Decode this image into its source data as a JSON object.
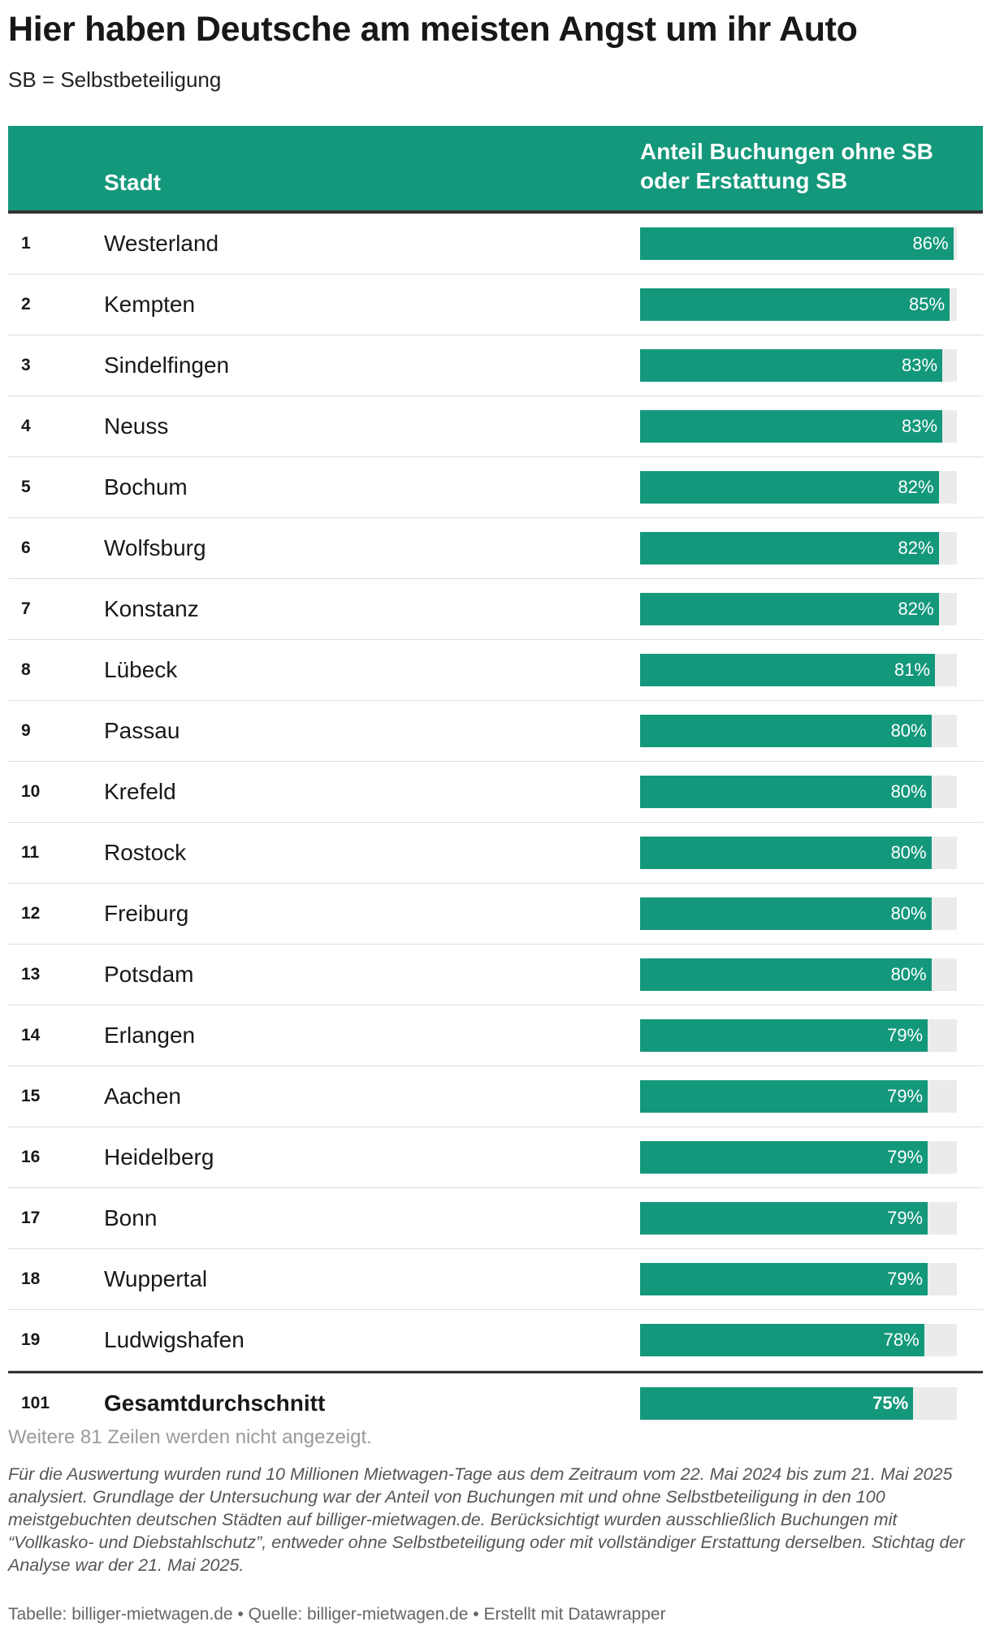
{
  "title": "Hier haben Deutsche am meisten Angst um ihr Auto",
  "subtitle": "SB = Selbstbeteiligung",
  "columns": {
    "city": "Stadt",
    "share": "Anteil Buchungen ohne SB oder Erstattung SB"
  },
  "colors": {
    "accent": "#14987b",
    "bar_background": "#ebebeb",
    "rule": "#333333"
  },
  "chart_data": {
    "type": "table",
    "title": "Hier haben Deutsche am meisten Angst um ihr Auto",
    "subtitle": "SB = Selbstbeteiligung",
    "columns": [
      "",
      "Stadt",
      "Anteil Buchungen ohne SB oder Erstattung SB"
    ],
    "value_max": 87,
    "rows": [
      {
        "rank": "1",
        "city": "Westerland",
        "value": 86,
        "label": "86%"
      },
      {
        "rank": "2",
        "city": "Kempten",
        "value": 85,
        "label": "85%"
      },
      {
        "rank": "3",
        "city": "Sindelfingen",
        "value": 83,
        "label": "83%"
      },
      {
        "rank": "4",
        "city": "Neuss",
        "value": 83,
        "label": "83%"
      },
      {
        "rank": "5",
        "city": "Bochum",
        "value": 82,
        "label": "82%"
      },
      {
        "rank": "6",
        "city": "Wolfsburg",
        "value": 82,
        "label": "82%"
      },
      {
        "rank": "7",
        "city": "Konstanz",
        "value": 82,
        "label": "82%"
      },
      {
        "rank": "8",
        "city": "Lübeck",
        "value": 81,
        "label": "81%"
      },
      {
        "rank": "9",
        "city": "Passau",
        "value": 80,
        "label": "80%"
      },
      {
        "rank": "10",
        "city": "Krefeld",
        "value": 80,
        "label": "80%"
      },
      {
        "rank": "11",
        "city": "Rostock",
        "value": 80,
        "label": "80%"
      },
      {
        "rank": "12",
        "city": "Freiburg",
        "value": 80,
        "label": "80%"
      },
      {
        "rank": "13",
        "city": "Potsdam",
        "value": 80,
        "label": "80%"
      },
      {
        "rank": "14",
        "city": "Erlangen",
        "value": 79,
        "label": "79%"
      },
      {
        "rank": "15",
        "city": "Aachen",
        "value": 79,
        "label": "79%"
      },
      {
        "rank": "16",
        "city": "Heidelberg",
        "value": 79,
        "label": "79%"
      },
      {
        "rank": "17",
        "city": "Bonn",
        "value": 79,
        "label": "79%"
      },
      {
        "rank": "18",
        "city": "Wuppertal",
        "value": 79,
        "label": "79%"
      },
      {
        "rank": "19",
        "city": "Ludwigshafen",
        "value": 78,
        "label": "78%"
      }
    ],
    "total": {
      "rank": "101",
      "city": "Gesamtdurchschnitt",
      "value": 75,
      "label": "75%"
    }
  },
  "more_rows_text": "Weitere 81 Zeilen werden nicht angezeigt.",
  "note": "Für die Auswertung wurden rund 10 Millionen Mietwagen-Tage aus dem Zeitraum vom 22. Mai 2024 bis zum 21. Mai 2025 analysiert. Grundlage der Untersuchung war der Anteil von Buchungen mit und ohne Selbstbeteiligung in den 100 meistgebuchten deutschen Städten auf billiger-mietwagen.de. Berücksichtigt wurden ausschließlich Buchungen mit “Vollkasko- und Diebstahlschutz”, entweder ohne Selbstbeteiligung oder mit vollständiger Erstattung derselben. Stichtag der Analyse war der 21. Mai 2025.",
  "footer": "Tabelle: billiger-mietwagen.de • Quelle: billiger-mietwagen.de • Erstellt mit Datawrapper"
}
